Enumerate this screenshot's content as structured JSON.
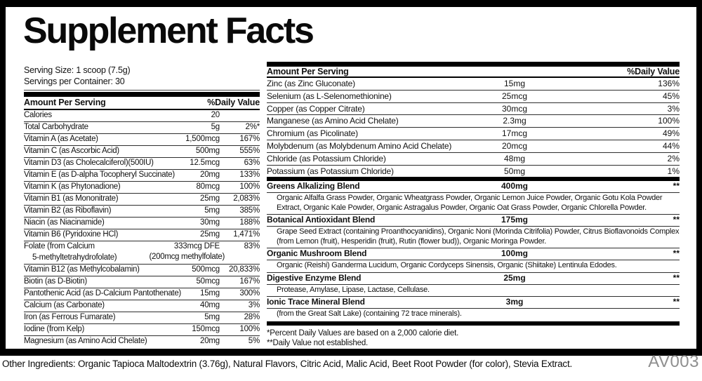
{
  "label": {
    "title": "Supplement Facts",
    "serving_size": "Serving Size: 1 scoop (7.5g)",
    "servings_per_container": "Servings per Container: 30",
    "left_table": {
      "header": {
        "amount_per_serving": "Amount Per Serving",
        "daily_value": "%Daily Value"
      },
      "rows": [
        {
          "name": "Calories",
          "amount": "20",
          "dv": ""
        },
        {
          "name": "Total Carbohydrate",
          "amount": "5g",
          "dv": "2%*"
        },
        {
          "name": "Vitamin A (as Acetate)",
          "amount": "1,500mcg",
          "dv": "167%"
        },
        {
          "name": "Vitamin C (as Ascorbic Acid)",
          "amount": "500mg",
          "dv": "555%"
        },
        {
          "name": "Vitamin D3 (as Cholecalciferol)(500IU)",
          "amount": "12.5mcg",
          "dv": "63%"
        },
        {
          "name": "Vitamin E (as D-alpha Tocopheryl Succinate)",
          "amount": "20mg",
          "dv": "133%"
        },
        {
          "name": "Vitamin K (as Phytonadione)",
          "amount": "80mcg",
          "dv": "100%"
        },
        {
          "name": "Vitamin B1 (as Mononitrate)",
          "amount": "25mg",
          "dv": "2,083%"
        },
        {
          "name": "Vitamin B2 (as Riboflavin)",
          "amount": "5mg",
          "dv": "385%"
        },
        {
          "name": "Niacin (as Niacinamide)",
          "amount": "30mg",
          "dv": "188%"
        },
        {
          "name": "Vitamin B6 (Pyridoxine HCl)",
          "amount": "25mg",
          "dv": "1,471%"
        },
        {
          "name": "Folate (from Calcium",
          "name2": "5-methyltetrahydrofolate)",
          "amount": "333mcg DFE",
          "amount2": "(200mcg methylfolate)",
          "dv": "83%"
        },
        {
          "name": "Vitamin B12 (as Methylcobalamin)",
          "amount": "500mcg",
          "dv": "20,833%"
        },
        {
          "name": "Biotin (as D-Biotin)",
          "amount": "50mcg",
          "dv": "167%"
        },
        {
          "name": "Pantothenic Acid (as D-Calcium Pantothenate)",
          "amount": "15mg",
          "dv": "300%"
        },
        {
          "name": "Calcium (as Carbonate)",
          "amount": "40mg",
          "dv": "3%"
        },
        {
          "name": "Iron (as Ferrous Fumarate)",
          "amount": "5mg",
          "dv": "28%"
        },
        {
          "name": "Iodine (from Kelp)",
          "amount": "150mcg",
          "dv": "100%"
        },
        {
          "name": "Magnesium (as Amino Acid Chelate)",
          "amount": "20mg",
          "dv": "5%"
        }
      ]
    },
    "right_table": {
      "header": {
        "amount_per_serving": "Amount Per Serving",
        "daily_value": "%Daily Value"
      },
      "rows": [
        {
          "name": "Zinc (as Zinc Gluconate)",
          "amount": "15mg",
          "dv": "136%"
        },
        {
          "name": "Selenium (as L-Selenomethionine)",
          "amount": "25mcg",
          "dv": "45%"
        },
        {
          "name": "Copper (as Copper Citrate)",
          "amount": "30mcg",
          "dv": "3%"
        },
        {
          "name": "Manganese (as Amino Acid Chelate)",
          "amount": "2.3mg",
          "dv": "100%"
        },
        {
          "name": "Chromium (as Picolinate)",
          "amount": "17mcg",
          "dv": "49%"
        },
        {
          "name": "Molybdenum (as Molybdenum Amino Acid Chelate)",
          "amount": "20mcg",
          "dv": "44%"
        },
        {
          "name": "Chloride (as Potassium Chloride)",
          "amount": "48mg",
          "dv": "2%"
        },
        {
          "name": "Potassium (as Potassium Chloride)",
          "amount": "50mg",
          "dv": "1%"
        }
      ],
      "blends": [
        {
          "name": "Greens Alkalizing Blend",
          "amount": "400mg",
          "dv": "**",
          "desc": "Organic Alfalfa Grass Powder, Organic Wheatgrass Powder, Organic Lemon Juice Powder, Organic Gotu Kola Powder Extract, Organic Kale Powder, Organic Astragalus Powder, Organic Oat Grass Powder, Organic Chlorella Powder."
        },
        {
          "name": "Botanical Antioxidant Blend",
          "amount": "175mg",
          "dv": "**",
          "desc": "Grape Seed Extract (containing Proanthocyanidins), Organic Noni (Morinda Citrifolia) Powder, Citrus Bioflavonoids Complex (from Lemon (fruit), Hesperidin (fruit), Rutin (flower bud)), Organic Moringa Powder."
        },
        {
          "name": "Organic Mushroom Blend",
          "amount": "100mg",
          "dv": "**",
          "desc": "Organic (Reishi) Ganderma Lucidum, Organic Cordyceps Sinensis, Organic (Shiitake) Lentinula Edodes."
        },
        {
          "name": "Digestive Enzyme Blend",
          "amount": "25mg",
          "dv": "**",
          "desc": "Protease, Amylase, Lipase, Lactase, Cellulase."
        },
        {
          "name": "Ionic Trace Mineral Blend",
          "amount": "3mg",
          "dv": "**",
          "desc": "(from the Great Salt Lake) (containing 72 trace minerals)."
        }
      ]
    },
    "footnotes": [
      "*Percent Daily Values are based on a 2,000 calorie diet.",
      "**Daily Value not established."
    ]
  },
  "footer": {
    "other_ingredients": "Other Ingredients: Organic Tapioca Maltodextrin (3.76g), Natural Flavors, Citric Acid, Malic Acid, Beet Root Powder (for color), Stevia Extract.",
    "code": "AV003"
  },
  "colors": {
    "text": "#111111",
    "line": "#2e2e2e",
    "bar": "#000000",
    "code_gray": "#8f8f8f"
  }
}
